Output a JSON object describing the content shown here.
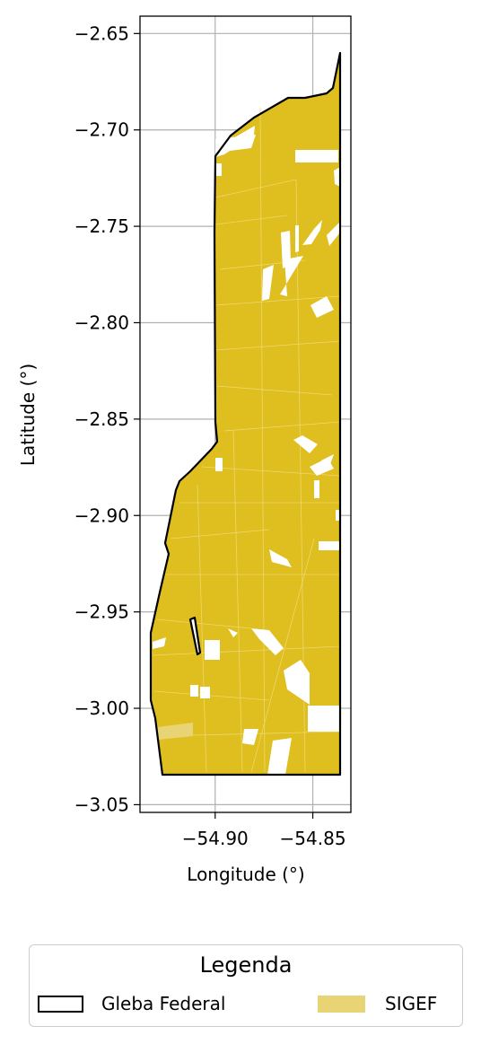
{
  "map": {
    "xlabel": "Longitude (°)",
    "ylabel": "Latitude (°)",
    "x_ticks": [
      {
        "value": -54.9,
        "label": "−54.90"
      },
      {
        "value": -54.85,
        "label": "−54.85"
      }
    ],
    "y_ticks": [
      {
        "value": -2.65,
        "label": "−2.65"
      },
      {
        "value": -2.7,
        "label": "−2.70"
      },
      {
        "value": -2.75,
        "label": "−2.75"
      },
      {
        "value": -2.8,
        "label": "−2.80"
      },
      {
        "value": -2.85,
        "label": "−2.85"
      },
      {
        "value": -2.9,
        "label": "−2.90"
      },
      {
        "value": -2.95,
        "label": "−2.95"
      },
      {
        "value": -3.0,
        "label": "−3.00"
      },
      {
        "value": -3.05,
        "label": "−3.05"
      }
    ],
    "xlim": [
      -54.9385,
      -54.8305
    ],
    "ylim": [
      -3.054,
      -2.641
    ],
    "grid": true,
    "colors": {
      "sigef_fill": "#dfbe20",
      "gleba_edge": "#000000",
      "grid": "#b0b0b0",
      "legend_sigef_swatch": "#e8d475"
    }
  },
  "legend": {
    "title": "Legenda",
    "items": [
      {
        "label": "Gleba Federal"
      },
      {
        "label": "SIGEF"
      }
    ]
  }
}
